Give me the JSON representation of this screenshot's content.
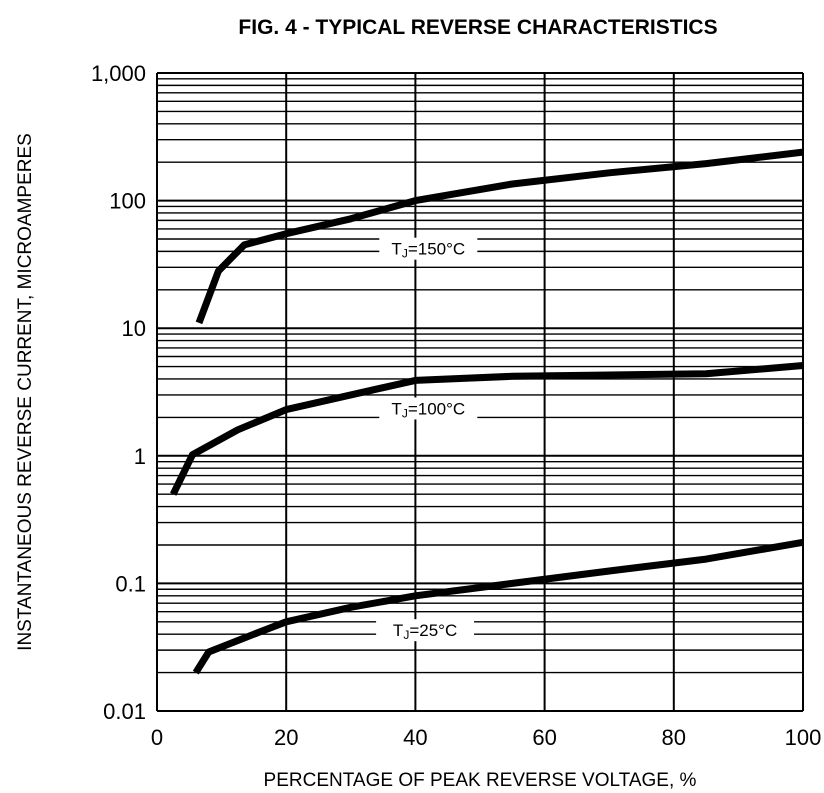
{
  "chart_data": {
    "type": "line",
    "title": "FIG. 4 - TYPICAL REVERSE CHARACTERISTICS",
    "xlabel": "PERCENTAGE OF PEAK REVERSE VOLTAGE, %",
    "ylabel": "INSTANTANEOUS REVERSE CURRENT, MICROAMPERES",
    "xlim": [
      0,
      100
    ],
    "ylim": [
      0.01,
      1000
    ],
    "yscale": "log",
    "grid": true,
    "x_ticks": [
      "0",
      "20",
      "40",
      "60",
      "80",
      "100"
    ],
    "y_ticks": [
      "0.01",
      "0.1",
      "1",
      "10",
      "100",
      "1,000"
    ],
    "series": [
      {
        "name": "150°C",
        "label_main": "T",
        "label_sub": "J",
        "label_rest": "=150°C",
        "x": [
          6.5,
          9.5,
          13.5,
          20,
          30,
          40,
          55,
          70,
          85,
          100
        ],
        "y": [
          11,
          28,
          45,
          55,
          72,
          100,
          135,
          165,
          195,
          240
        ]
      },
      {
        "name": "100°C",
        "label_main": "T",
        "label_sub": "J",
        "label_rest": "=100°C",
        "x": [
          2.5,
          5.5,
          12.5,
          20,
          30,
          40,
          55,
          70,
          85,
          100
        ],
        "y": [
          0.5,
          1.02,
          1.6,
          2.3,
          3.0,
          3.9,
          4.2,
          4.3,
          4.4,
          5.1
        ]
      },
      {
        "name": "25°C",
        "label_main": "T",
        "label_sub": "J",
        "label_rest": "=25°C",
        "x": [
          6,
          8,
          15,
          20,
          30,
          40,
          55,
          70,
          85,
          100
        ],
        "y": [
          0.02,
          0.029,
          0.04,
          0.05,
          0.065,
          0.08,
          0.1,
          0.125,
          0.155,
          0.21
        ]
      }
    ],
    "colors": {
      "line": "#000000",
      "grid": "#000000",
      "background": "#ffffff"
    }
  }
}
